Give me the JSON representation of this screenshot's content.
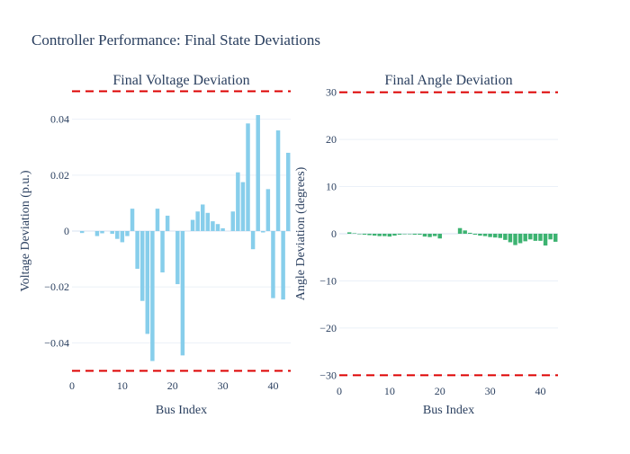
{
  "title": "Controller Performance: Final State Deviations",
  "chart_data": [
    {
      "type": "bar",
      "title": "Final Voltage Deviation",
      "xlabel": "Bus Index",
      "ylabel": "Voltage Deviation (p.u.)",
      "xlim": [
        0,
        43.5
      ],
      "ylim": [
        -0.0505,
        0.0505
      ],
      "xticks": [
        0,
        10,
        20,
        30,
        40
      ],
      "yticks": [
        -0.04,
        -0.02,
        0,
        0.02,
        0.04
      ],
      "ytick_labels": [
        "−0.04",
        "−0.02",
        "0",
        "0.02",
        "0.04"
      ],
      "color": "#87ceeb",
      "limit_lines": [
        0.05,
        -0.05
      ],
      "limit_color": "#dd0000",
      "grid": true,
      "x": [
        1,
        2,
        3,
        4,
        5,
        6,
        7,
        8,
        9,
        10,
        11,
        12,
        13,
        14,
        15,
        16,
        17,
        18,
        19,
        20,
        21,
        22,
        23,
        24,
        25,
        26,
        27,
        28,
        29,
        30,
        31,
        32,
        33,
        34,
        35,
        36,
        37,
        38,
        39,
        40,
        41,
        42,
        43
      ],
      "values": [
        0,
        -0.0007,
        0,
        0,
        -0.0018,
        -0.0008,
        0,
        -0.001,
        -0.0028,
        -0.004,
        -0.0018,
        0.008,
        -0.0135,
        -0.025,
        -0.0368,
        -0.0465,
        0.008,
        -0.0148,
        0.0055,
        0,
        -0.019,
        -0.0445,
        0,
        0.004,
        0.007,
        0.0095,
        0.0065,
        0.0035,
        0.0025,
        0.001,
        0,
        0.007,
        0.021,
        0.0175,
        0.0385,
        -0.0065,
        0.0415,
        -0.0005,
        0.015,
        -0.024,
        0.036,
        -0.0245,
        0.028
      ]
    },
    {
      "type": "bar",
      "title": "Final Angle Deviation",
      "xlabel": "Bus Index",
      "ylabel": "Angle Deviation (degrees)",
      "xlim": [
        0,
        43.5
      ],
      "ylim": [
        -30.5,
        30.5
      ],
      "xticks": [
        0,
        10,
        20,
        30,
        40
      ],
      "yticks": [
        -30,
        -20,
        -10,
        0,
        10,
        20,
        30
      ],
      "ytick_labels": [
        "−30",
        "−20",
        "−10",
        "0",
        "10",
        "20",
        "30"
      ],
      "color": "#3cb371",
      "limit_lines": [
        30,
        -30
      ],
      "limit_color": "#dd0000",
      "grid": true,
      "x": [
        1,
        2,
        3,
        4,
        5,
        6,
        7,
        8,
        9,
        10,
        11,
        12,
        13,
        14,
        15,
        16,
        17,
        18,
        19,
        20,
        21,
        22,
        23,
        24,
        25,
        26,
        27,
        28,
        29,
        30,
        31,
        32,
        33,
        34,
        35,
        36,
        37,
        38,
        39,
        40,
        41,
        42,
        43
      ],
      "values": [
        0,
        0.3,
        0.1,
        -0.1,
        -0.2,
        -0.3,
        -0.4,
        -0.5,
        -0.5,
        -0.6,
        -0.4,
        -0.2,
        -0.1,
        -0.1,
        -0.2,
        -0.2,
        -0.6,
        -0.7,
        -0.5,
        -1.0,
        0,
        0,
        0,
        1.2,
        0.7,
        0.2,
        -0.2,
        -0.4,
        -0.5,
        -0.7,
        -0.8,
        -0.9,
        -1.3,
        -1.8,
        -2.4,
        -2.0,
        -1.6,
        -1.2,
        -1.5,
        -1.5,
        -2.5,
        -1.2,
        -1.7
      ]
    }
  ]
}
